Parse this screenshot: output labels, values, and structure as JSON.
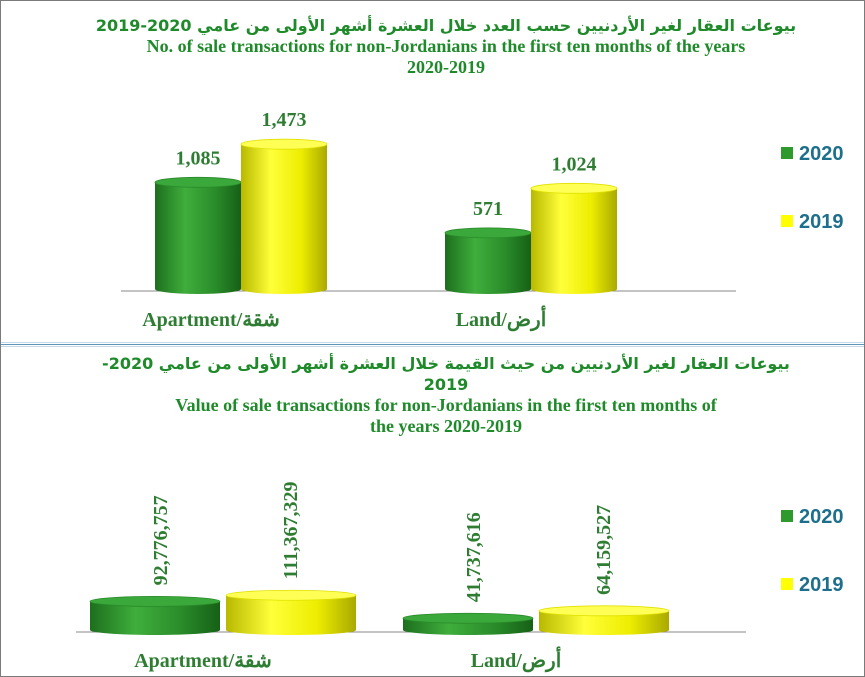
{
  "colors": {
    "2020": "#2e9a2e",
    "2019": "#ffff00",
    "title": "#1f8a2a",
    "labels": "#2e7d33",
    "legend": "#1e6f8c"
  },
  "chart_data": [
    {
      "type": "bar",
      "title_ar": "بيوعات العقار لغير الأردنيين حسب العدد خلال العشرة أشهر الأولى من عامي 2020-2019",
      "title_en": "No. of sale transactions for non-Jordanians in the first ten  months of the years",
      "title_years": "2020-2019",
      "categories": [
        "Apartment/شقة",
        "Land/أرض"
      ],
      "series": [
        {
          "name": "2020",
          "values": [
            1085,
            571
          ],
          "labels": [
            "1,085",
            "571"
          ]
        },
        {
          "name": "2019",
          "values": [
            1473,
            1024
          ],
          "labels": [
            "1,473",
            "1,024"
          ]
        }
      ],
      "ylim": [
        0,
        1600
      ],
      "legend": [
        "2020",
        "2019"
      ],
      "legend_position": "right"
    },
    {
      "type": "bar",
      "title_ar": "بيوعات العقار لغير الأردنيين من حيث القيمة خلال العشرة أشهر الأولى من عامي 2020-2019",
      "title_en": "Value of sale transactions for non-Jordanians in the first ten  months of",
      "title_years": "the years 2020-2019",
      "categories": [
        "Apartment/شقة",
        "Land/أرض"
      ],
      "series": [
        {
          "name": "2020",
          "values": [
            92776757,
            41737616
          ],
          "labels": [
            "92,776,757",
            "41,737,616"
          ]
        },
        {
          "name": "2019",
          "values": [
            111367329,
            64159527
          ],
          "labels": [
            "111,367,329",
            "64,159,527"
          ]
        }
      ],
      "ylim": [
        0,
        1000000000
      ],
      "legend": [
        "2020",
        "2019"
      ],
      "legend_position": "right"
    }
  ]
}
